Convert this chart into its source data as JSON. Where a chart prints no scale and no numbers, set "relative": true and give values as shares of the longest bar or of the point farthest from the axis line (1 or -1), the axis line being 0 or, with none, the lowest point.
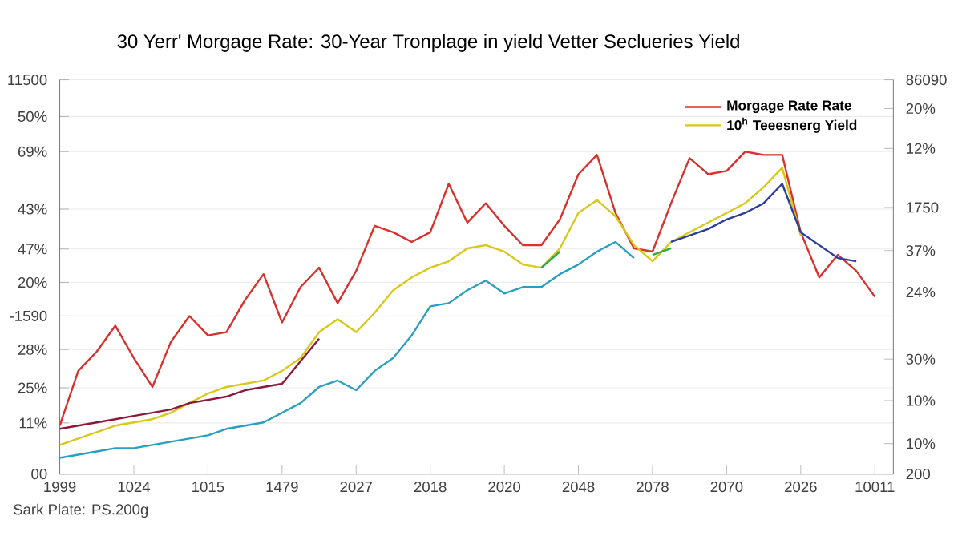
{
  "chart_data": {
    "type": "line",
    "title": "30 Yerr' Morgage Rate: 30-Year Tronplage in yield Vetter Seclueries Yield",
    "annotations": [
      "Sark Plate: PS.200g",
      "11500",
      "50%",
      "69%",
      "43%",
      "47%",
      "20%",
      "-1590",
      "28%",
      "25%",
      "11%",
      "00",
      "86090",
      "20%",
      "12%",
      "1750",
      "37%",
      "24%",
      "30%",
      "10%",
      "10%",
      "200"
    ],
    "categories": [
      "1999",
      null,
      null,
      null,
      "1024",
      null,
      null,
      null,
      "1015",
      null,
      null,
      null,
      "1479",
      null,
      null,
      null,
      "2027",
      null,
      null,
      null,
      "2018",
      null,
      null,
      null,
      "2020",
      null,
      null,
      null,
      "2048",
      null,
      null,
      null,
      "2078",
      null,
      null,
      null,
      "2070",
      null,
      null,
      null,
      "2026",
      null,
      null,
      null,
      "10011"
    ],
    "relative": true,
    "grid": "y",
    "legend": "top right",
    "line_style": "solid",
    "series": [
      {
        "name": "Morgage Rate Rate",
        "color": "#d9302c",
        "values": [
          0.15,
          0.32,
          0.38,
          0.46,
          0.36,
          0.27,
          0.41,
          0.49,
          0.43,
          0.44,
          0.54,
          0.62,
          0.47,
          0.58,
          0.64,
          0.53,
          0.63,
          0.77,
          0.75,
          0.72,
          0.75,
          0.9,
          0.78,
          0.84,
          0.77,
          0.71,
          0.71,
          0.79,
          0.93,
          0.99,
          0.81,
          0.7,
          0.69,
          0.84,
          0.98,
          0.93,
          0.94,
          1,
          0.99,
          0.99,
          0.75,
          0.61,
          0.68,
          0.63,
          0.55
        ]
      },
      {
        "name": "10$^{h}$ Teeesnerg Yield",
        "color": "#d8c81a",
        "values": [
          0.09,
          0.11,
          0.13,
          0.15,
          0.16,
          0.17,
          0.19,
          0.22,
          0.25,
          0.27,
          0.28,
          0.29,
          0.32,
          0.36,
          0.44,
          0.48,
          0.44,
          0.5,
          0.57,
          0.61,
          0.64,
          0.66,
          0.7,
          0.71,
          0.69,
          0.65,
          0.64,
          0.7,
          0.81,
          0.85,
          0.8,
          0.71,
          0.66,
          0.72,
          0.75,
          0.78,
          0.81,
          0.84,
          0.89,
          0.95,
          0.74,
          null,
          null,
          null,
          null
        ]
      },
      {
        "color": "#2aa0c0",
        "values": [
          0.05,
          0.06,
          0.07,
          0.08,
          0.08,
          0.09,
          0.1,
          0.11,
          0.12,
          0.14,
          0.15,
          0.16,
          0.19,
          0.22,
          0.27,
          0.29,
          0.26,
          0.32,
          0.36,
          0.43,
          0.52,
          0.53,
          0.57,
          0.6,
          0.56,
          0.58,
          0.58,
          0.62,
          0.65,
          0.69,
          0.72,
          0.67,
          null,
          null,
          null,
          null,
          null,
          null,
          null,
          null,
          null,
          null,
          null,
          null,
          null
        ]
      },
      {
        "color": "#8b1a3a",
        "values": [
          0.14,
          0.15,
          0.16,
          0.17,
          0.18,
          0.19,
          0.2,
          0.22,
          0.23,
          0.24,
          0.26,
          0.27,
          0.28,
          0.35,
          0.42,
          null,
          null,
          null,
          null,
          null,
          null,
          null,
          null,
          null,
          null,
          null,
          null,
          null,
          null,
          null,
          null,
          null,
          null,
          null,
          null,
          null,
          null,
          null,
          null,
          null,
          null,
          null,
          null,
          null,
          null
        ]
      },
      {
        "color": "#2ea84a",
        "values": [
          null,
          null,
          null,
          null,
          null,
          null,
          null,
          null,
          null,
          null,
          null,
          null,
          null,
          null,
          null,
          null,
          null,
          null,
          null,
          null,
          null,
          null,
          null,
          null,
          null,
          null,
          0.64,
          0.69,
          null,
          null,
          null,
          null,
          0.68,
          0.7,
          null,
          null,
          null,
          null,
          null,
          null,
          null,
          null,
          null,
          null,
          null
        ]
      },
      {
        "color": "#2b3f9a",
        "values": [
          null,
          null,
          null,
          null,
          null,
          null,
          null,
          null,
          null,
          null,
          null,
          null,
          null,
          null,
          null,
          null,
          null,
          null,
          null,
          null,
          null,
          null,
          null,
          null,
          null,
          null,
          null,
          null,
          null,
          null,
          null,
          null,
          null,
          0.72,
          0.74,
          0.76,
          0.79,
          0.81,
          0.84,
          0.9,
          0.75,
          0.71,
          0.67,
          0.66,
          null
        ]
      }
    ]
  }
}
